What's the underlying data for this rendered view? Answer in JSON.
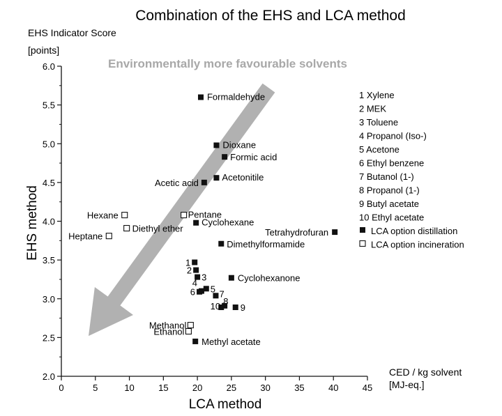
{
  "chart_data": {
    "type": "scatter",
    "title": "Combination of the EHS and LCA method",
    "ylabel_top": "EHS Indicator Score",
    "ylabel_top_unit": "[points]",
    "ylabel": "EHS method",
    "xlabel": "LCA method",
    "xlabel_right": "CED / kg solvent",
    "xlabel_right_unit": "[MJ-eq.]",
    "xlim": [
      0,
      45
    ],
    "ylim": [
      2.0,
      6.0
    ],
    "xticks": [
      "0",
      "5",
      "10",
      "15",
      "20",
      "25",
      "30",
      "35",
      "40",
      "45"
    ],
    "yticks": [
      "2.0",
      "2.5",
      "3.0",
      "3.5",
      "4.0",
      "4.5",
      "5.0",
      "5.5",
      "6.0"
    ],
    "arrow_text": "Environmentally more favourable solvents",
    "series": [
      {
        "name": "LCA option distillation",
        "marker": "filled-square",
        "points": [
          {
            "x": 20.5,
            "y": 5.6,
            "label": "Formaldehyde"
          },
          {
            "x": 22.8,
            "y": 4.98,
            "label": "Dioxane"
          },
          {
            "x": 24.0,
            "y": 4.83,
            "label": "Formic acid"
          },
          {
            "x": 21.0,
            "y": 4.5,
            "label": "Acetic acid"
          },
          {
            "x": 22.8,
            "y": 4.56,
            "label": "Acetonitile"
          },
          {
            "x": 19.8,
            "y": 3.98,
            "label": "Cyclohexane"
          },
          {
            "x": 40.2,
            "y": 3.86,
            "label": "Tetrahydrofuran"
          },
          {
            "x": 23.5,
            "y": 3.71,
            "label": "Dimethylformamide"
          },
          {
            "x": 25.0,
            "y": 3.27,
            "label": "Cyclohexanone"
          },
          {
            "x": 19.7,
            "y": 2.45,
            "label": "Methyl acetate"
          },
          {
            "x": 19.6,
            "y": 3.47,
            "label": "1"
          },
          {
            "x": 19.8,
            "y": 3.37,
            "label": "2"
          },
          {
            "x": 20.0,
            "y": 3.28,
            "label": "3"
          },
          {
            "x": 20.6,
            "y": 3.1,
            "label": "4"
          },
          {
            "x": 21.3,
            "y": 3.13,
            "label": "5"
          },
          {
            "x": 20.3,
            "y": 3.09,
            "label": "6"
          },
          {
            "x": 22.7,
            "y": 3.04,
            "label": "7"
          },
          {
            "x": 23.5,
            "y": 2.89,
            "label": "8"
          },
          {
            "x": 25.6,
            "y": 2.89,
            "label": "9"
          },
          {
            "x": 24.0,
            "y": 2.91,
            "label": "10"
          }
        ]
      },
      {
        "name": "LCA option incineration",
        "marker": "open-square",
        "points": [
          {
            "x": 9.3,
            "y": 4.08,
            "label": "Hexane"
          },
          {
            "x": 9.6,
            "y": 3.91,
            "label": "Diethyl ether"
          },
          {
            "x": 7.0,
            "y": 3.81,
            "label": "Heptane"
          },
          {
            "x": 18.0,
            "y": 4.08,
            "label": "Pentane"
          },
          {
            "x": 19.0,
            "y": 2.66,
            "label": "Methanol"
          },
          {
            "x": 18.7,
            "y": 2.58,
            "label": "Ethanol"
          }
        ]
      }
    ],
    "legend_items": [
      "1 Xylene",
      "2 MEK",
      "3 Toluene",
      "4 Propanol (Iso-)",
      "5 Acetone",
      "6 Ethyl benzene",
      "7 Butanol (1-)",
      "8 Propanol (1-)",
      "9 Butyl acetate",
      "10 Ethyl acetate"
    ],
    "legend_markers": [
      {
        "marker": "filled-square",
        "label": "LCA option distillation"
      },
      {
        "marker": "open-square",
        "label": "LCA option incineration"
      }
    ],
    "colors": {
      "marker": "#111111",
      "arrow": "#a8a8a8",
      "axis": "#111111"
    }
  }
}
